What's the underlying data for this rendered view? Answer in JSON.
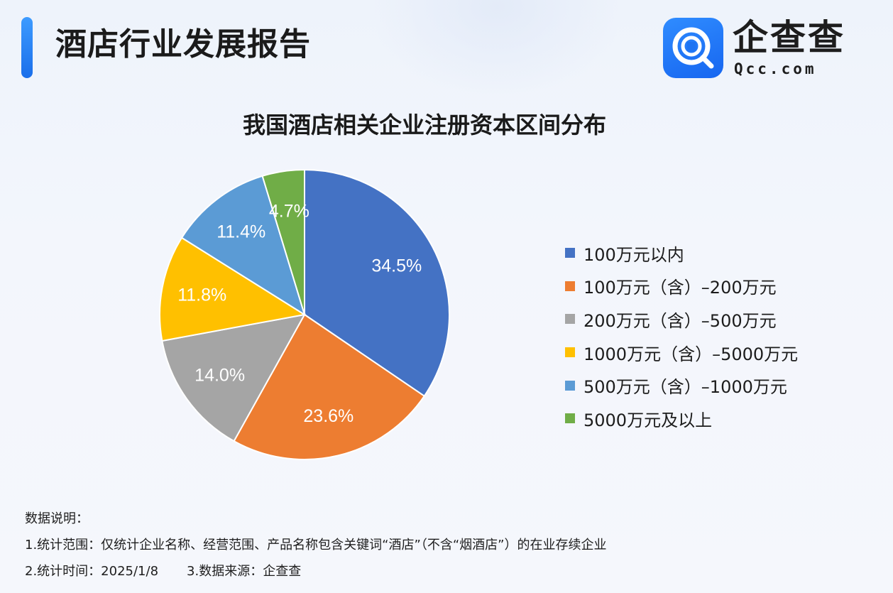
{
  "header": {
    "title": "酒店行业发展报告",
    "logo_name": "企查查",
    "logo_domain": "Qcc.com",
    "logo_icon": "qcc-search-logo-icon",
    "accent_color": "#1f78f0"
  },
  "chart_data": {
    "type": "pie",
    "title": "我国酒店相关企业注册资本区间分布",
    "slices": [
      {
        "label": "100万元以内",
        "value": 34.5,
        "display": "34.5%",
        "color": "#4472c4"
      },
      {
        "label": "100万元（含）–200万元",
        "value": 23.6,
        "display": "23.6%",
        "color": "#ed7d31"
      },
      {
        "label": "200万元（含）–500万元",
        "value": 14.0,
        "display": "14.0%",
        "color": "#a5a5a5"
      },
      {
        "label": "1000万元（含）–5000万元",
        "value": 11.8,
        "display": "11.8%",
        "color": "#ffc000"
      },
      {
        "label": "500万元（含）–1000万元",
        "value": 11.4,
        "display": "11.4%",
        "color": "#5b9bd5"
      },
      {
        "label": "5000万元及以上",
        "value": 4.7,
        "display": "4.7%",
        "color": "#70ad47"
      }
    ],
    "legend_position": "right",
    "start_angle": "top, clockwise"
  },
  "notes": {
    "heading": "数据说明：",
    "scope": "1.统计范围：仅统计企业名称、经营范围、产品名称包含关键词“酒店”（不含“烟酒店”）的在业存续企业",
    "time": "2.统计时间：2025/1/8",
    "source": "3.数据来源：企查查"
  }
}
